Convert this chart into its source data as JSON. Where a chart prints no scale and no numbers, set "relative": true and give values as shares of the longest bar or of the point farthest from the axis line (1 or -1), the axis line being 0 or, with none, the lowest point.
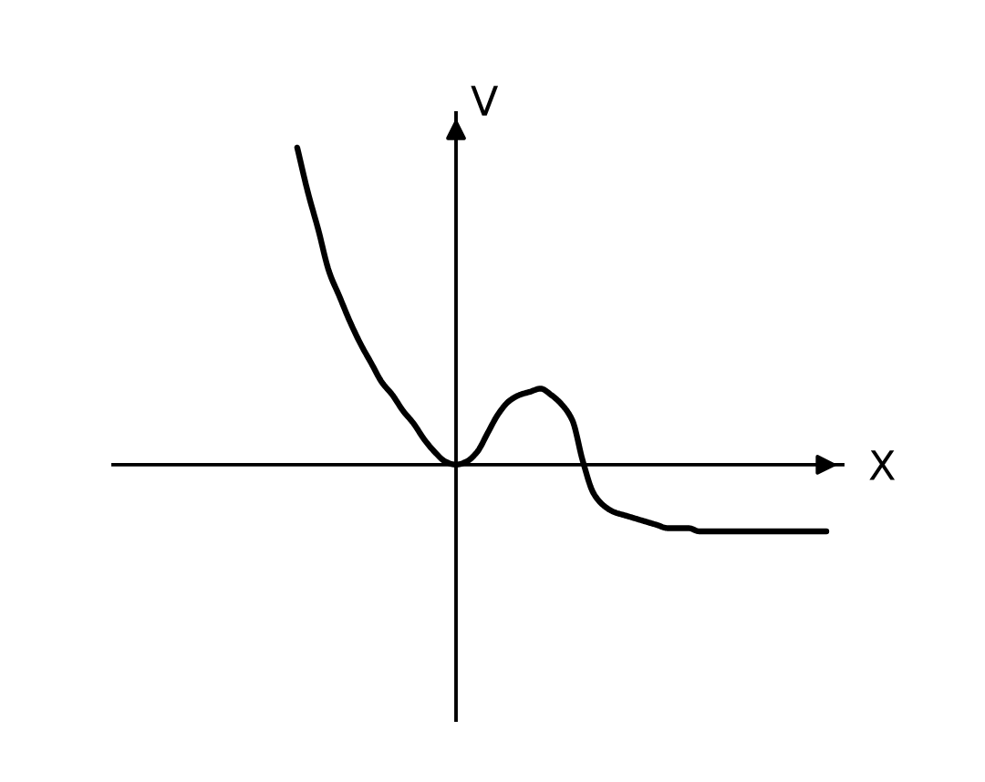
{
  "chart_data": {
    "type": "line",
    "relative": true,
    "xlabel": "X",
    "ylabel": "V",
    "categories": [
      null,
      null,
      null,
      null,
      null,
      null,
      null,
      null,
      null,
      null,
      null,
      null,
      null,
      null,
      null,
      null,
      null,
      null,
      null,
      null,
      null,
      null,
      null,
      null,
      null,
      null,
      null,
      null,
      null,
      null,
      null,
      null,
      null,
      null,
      null,
      null,
      null,
      null,
      null,
      null,
      null,
      null,
      null,
      null,
      null,
      null,
      null,
      null,
      null,
      null,
      null
    ],
    "series": [
      {
        "color": "#000000",
        "values": [
          1,
          0.86,
          0.74,
          0.61,
          0.53,
          0.45,
          0.38,
          0.32,
          0.26,
          0.22,
          0.17,
          0.13,
          0.08,
          0.04,
          0.01,
          0,
          0.01,
          0.04,
          0.1,
          0.16,
          0.2,
          0.22,
          0.23,
          0.24,
          0.22,
          0.19,
          0.14,
          0.01,
          -0.09,
          -0.13,
          -0.15,
          -0.16,
          -0.17,
          -0.18,
          -0.19,
          -0.2,
          -0.2,
          -0.2,
          -0.21,
          -0.21,
          -0.21,
          -0.21,
          -0.21,
          -0.21,
          -0.21,
          -0.21,
          -0.21,
          -0.21,
          -0.21,
          -0.21,
          -0.21
        ]
      }
    ]
  }
}
